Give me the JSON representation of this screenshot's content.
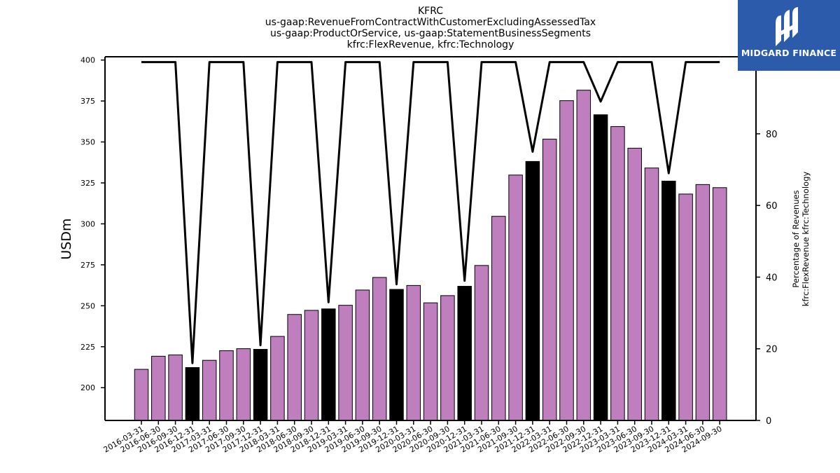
{
  "chart_data": {
    "type": "bar",
    "title_lines": [
      "KFRC",
      "us-gaap:RevenueFromContractWithCustomerExcludingAssessedTax",
      "us-gaap:ProductOrService, us-gaap:StatementBusinessSegments",
      "kfrc:FlexRevenue, kfrc:Technology"
    ],
    "ylabel": "USDm",
    "ylabel_right_lines": [
      "Percentage of Revenues",
      "kfrc:FlexRevenue kfrc:Technology"
    ],
    "ylim": [
      180,
      402
    ],
    "yticks": [
      200,
      225,
      250,
      275,
      300,
      325,
      350,
      375,
      400
    ],
    "y2lim": [
      0,
      101.5
    ],
    "y2ticks": [
      0,
      20,
      40,
      60,
      80,
      100
    ],
    "categories": [
      "2016-03-31",
      "2016-06-30",
      "2016-09-30",
      "2016-12-31",
      "2017-03-31",
      "2017-06-30",
      "2017-09-30",
      "2017-12-31",
      "2018-03-31",
      "2018-06-30",
      "2018-09-30",
      "2018-12-31",
      "2019-03-31",
      "2019-06-30",
      "2019-09-30",
      "2019-12-31",
      "2020-03-31",
      "2020-06-30",
      "2020-09-30",
      "2020-12-31",
      "2021-03-31",
      "2021-06-30",
      "2021-09-30",
      "2021-12-31",
      "2022-03-31",
      "2022-06-30",
      "2022-09-30",
      "2022-12-31",
      "2023-03-31",
      "2023-06-30",
      "2023-09-30",
      "2023-12-31",
      "2024-03-31",
      "2024-06-30",
      "2024-09-30"
    ],
    "values": [
      211.2,
      219.2,
      220.0,
      212.3,
      216.7,
      222.6,
      223.8,
      223.4,
      231.3,
      244.7,
      247.2,
      248.1,
      250.3,
      259.6,
      267.3,
      260.0,
      262.4,
      251.8,
      256.2,
      261.9,
      274.6,
      304.6,
      329.8,
      338.1,
      351.7,
      375.2,
      381.6,
      366.6,
      359.4,
      346.2,
      334.1,
      326.1,
      318.2,
      324.0,
      322.1
    ],
    "bar_highlight": [
      false,
      false,
      false,
      true,
      false,
      false,
      false,
      true,
      false,
      false,
      false,
      true,
      false,
      false,
      false,
      true,
      false,
      false,
      false,
      true,
      false,
      false,
      false,
      true,
      false,
      false,
      false,
      true,
      false,
      false,
      false,
      true,
      false,
      false,
      false
    ],
    "line_series": {
      "name": "Percentage of Revenues",
      "values": [
        100,
        100,
        100,
        16,
        100,
        100,
        100,
        21,
        100,
        100,
        100,
        33,
        100,
        100,
        100,
        38,
        100,
        100,
        100,
        39,
        100,
        100,
        100,
        75,
        100,
        100,
        100,
        89,
        100,
        100,
        100,
        69,
        100,
        100,
        100
      ]
    },
    "colors": {
      "bar": "#bf7fbf",
      "bar_highlight": "#000000",
      "line": "#000000"
    }
  },
  "logo": {
    "text": "MIDGARD FINANCE"
  }
}
